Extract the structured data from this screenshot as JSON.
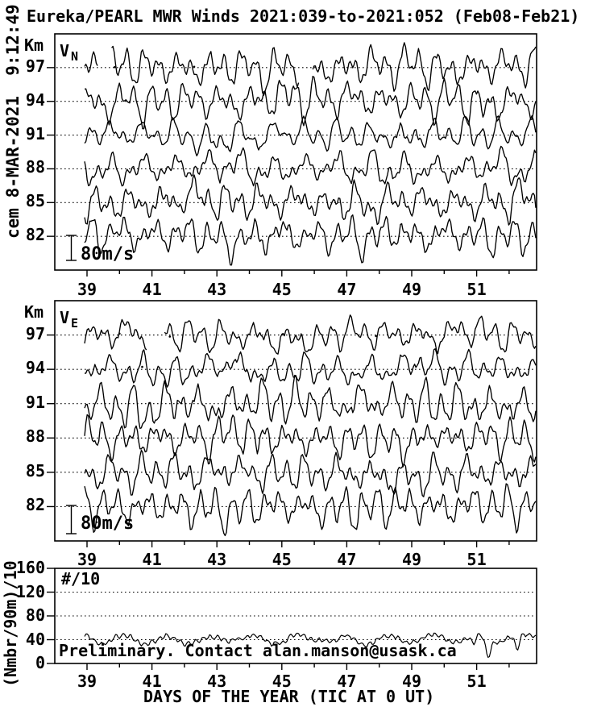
{
  "meta": {
    "title": "Eureka/PEARL MWR Winds 2021:039-to-2021:052 (Feb08-Feb21)",
    "side_timestamp": "cem 8-MAR-2021  9:12:49",
    "preliminary_note": "Preliminary. Contact alan.manson@usask.ca",
    "x_axis_title": "DAYS OF THE YEAR (TIC AT 0 UT)",
    "ink_color": "#000000",
    "background_color": "#ffffff"
  },
  "chart_data": [
    {
      "id": "vn",
      "type": "line",
      "panel_label": "V_N",
      "label_main": "V",
      "label_sub": "N",
      "y_unit_label": "Km",
      "altitudes_km": [
        97,
        94,
        91,
        88,
        85,
        82
      ],
      "x_major_ticks": [
        39,
        41,
        43,
        45,
        47,
        49,
        51
      ],
      "x_minor_ticks": [
        40,
        42,
        44,
        46,
        48,
        50,
        52
      ],
      "x_range_days": [
        38.0,
        52.85
      ],
      "data_range_days": [
        38.95,
        52.85
      ],
      "scale_bar_label": "80m/s",
      "scale_bar_ms": 80,
      "grid": "dotted baseline per altitude",
      "legend": "none",
      "description": "Northward wind vs day-of-year at six altitudes; each trace oscillates about its altitude baseline, typical amplitude 20-50 m/s, peaks near 85 m/s; reconstructed pseudo-randomly from per-series seeds to match visual texture",
      "series": [
        {
          "altitude_km": 97,
          "seed": 101,
          "gaps_days": [
            [
              39.35,
              39.75
            ],
            [
              45.55,
              45.95
            ]
          ],
          "dot_days": [
            39.85,
            42.3
          ]
        },
        {
          "altitude_km": 94,
          "seed": 102,
          "gaps_days": [],
          "dot_days": []
        },
        {
          "altitude_km": 91,
          "seed": 103,
          "gaps_days": [],
          "dot_days": []
        },
        {
          "altitude_km": 88,
          "seed": 104,
          "gaps_days": [],
          "dot_days": []
        },
        {
          "altitude_km": 85,
          "seed": 105,
          "gaps_days": [],
          "dot_days": []
        },
        {
          "altitude_km": 82,
          "seed": 106,
          "gaps_days": [],
          "dot_days": []
        }
      ]
    },
    {
      "id": "ve",
      "type": "line",
      "panel_label": "V_E",
      "label_main": "V",
      "label_sub": "E",
      "y_unit_label": "Km",
      "altitudes_km": [
        97,
        94,
        91,
        88,
        85,
        82
      ],
      "x_major_ticks": [
        39,
        41,
        43,
        45,
        47,
        49,
        51
      ],
      "x_minor_ticks": [
        40,
        42,
        44,
        46,
        48,
        50,
        52
      ],
      "x_range_days": [
        38.0,
        52.85
      ],
      "data_range_days": [
        38.95,
        52.85
      ],
      "scale_bar_label": "80m/s",
      "scale_bar_ms": 80,
      "grid": "dotted baseline per altitude",
      "legend": "none",
      "description": "Eastward wind vs day-of-year at six altitudes; same format as northward panel",
      "series": [
        {
          "altitude_km": 97,
          "seed": 201,
          "gaps_days": [
            [
              40.85,
              41.35
            ]
          ],
          "dot_days": [
            40.0,
            41.55,
            47.9
          ]
        },
        {
          "altitude_km": 94,
          "seed": 202,
          "gaps_days": [],
          "dot_days": [
            40.7
          ]
        },
        {
          "altitude_km": 91,
          "seed": 203,
          "gaps_days": [],
          "dot_days": []
        },
        {
          "altitude_km": 88,
          "seed": 204,
          "gaps_days": [],
          "dot_days": []
        },
        {
          "altitude_km": 85,
          "seed": 205,
          "gaps_days": [],
          "dot_days": []
        },
        {
          "altitude_km": 82,
          "seed": 206,
          "gaps_days": [],
          "dot_days": []
        }
      ]
    },
    {
      "id": "meteor-counts",
      "type": "line",
      "panel_label": "#/10",
      "y_axis_label": "(Nmbr/90m)/10",
      "y_ticks": [
        0,
        40,
        80,
        120,
        160
      ],
      "y_range": [
        0,
        160
      ],
      "x_major_ticks": [
        39,
        41,
        43,
        45,
        47,
        49,
        51
      ],
      "x_minor_ticks": [
        40,
        42,
        44,
        46,
        48,
        50,
        52
      ],
      "x_range_days": [
        38.0,
        52.85
      ],
      "data_range_days": [
        38.95,
        52.85
      ],
      "grid": "dotted lines at 40, 80, 120",
      "legend": "none",
      "description": "Echo count rate (number per 90 m, divided by 10) vs day; hovers near 40-45 with peaks near 60 and sharp dips late in the record",
      "series": [
        {
          "name": "count-rate",
          "seed": 301,
          "mean": 42,
          "typical_range": [
            28,
            62
          ],
          "dips": [
            {
              "day": 50.9,
              "min_value": 24
            },
            {
              "day": 51.35,
              "min_value": 12
            },
            {
              "day": 52.25,
              "min_value": 14
            }
          ]
        }
      ]
    }
  ]
}
